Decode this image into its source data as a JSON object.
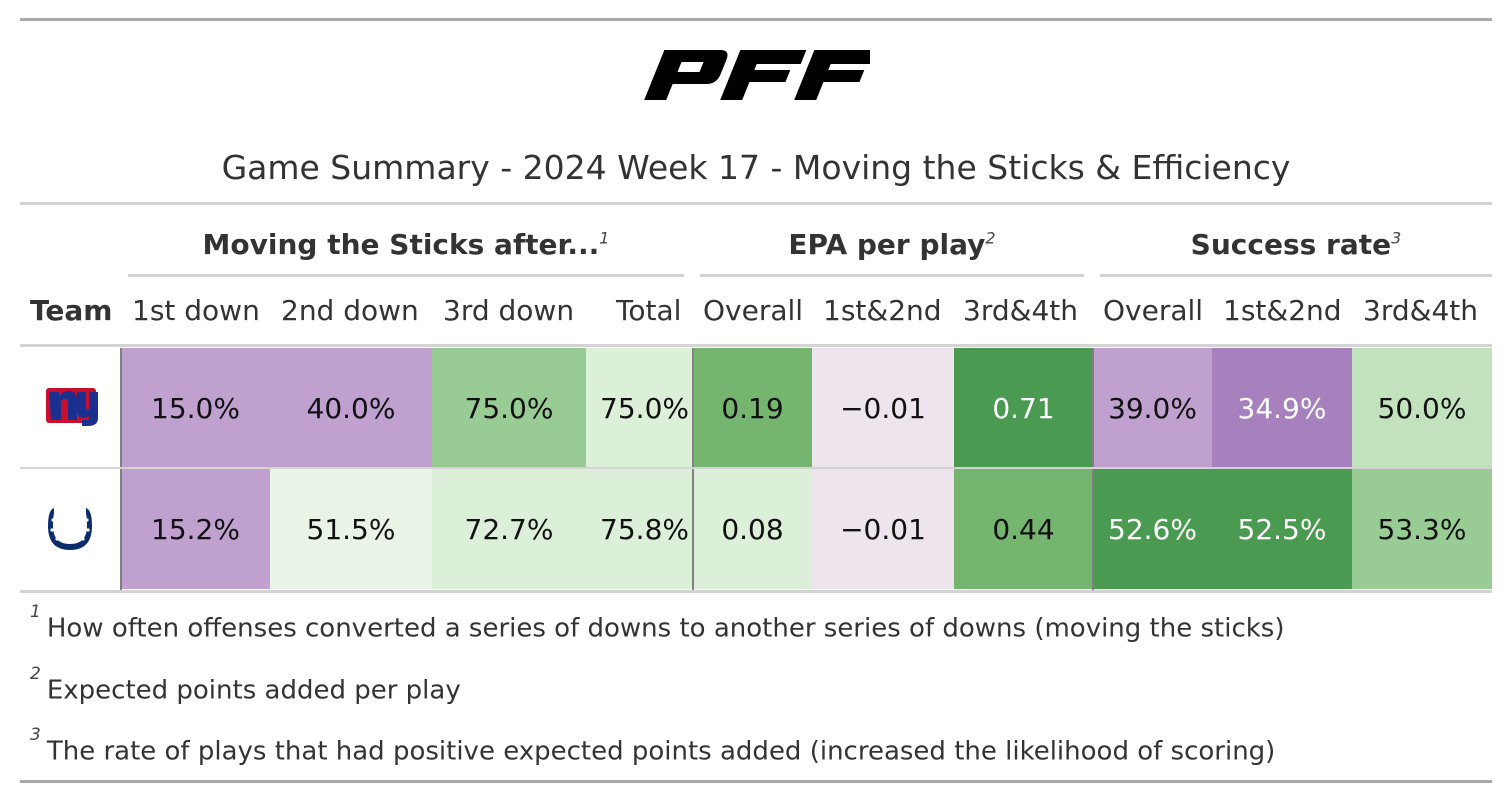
{
  "logo_text": "PFF",
  "title": "Game Summary - 2024 Week 17 - Moving the Sticks & Efficiency",
  "spanners": [
    {
      "label": "Moving the Sticks after...",
      "footnote": "1"
    },
    {
      "label": "EPA per play",
      "footnote": "2"
    },
    {
      "label": "Success rate",
      "footnote": "3"
    }
  ],
  "columns": [
    "Team",
    "1st down",
    "2nd down",
    "3rd down",
    "Total",
    "Overall",
    "1st&2nd",
    "3rd&4th",
    "Overall",
    "1st&2nd",
    "3rd&4th"
  ],
  "rows": [
    {
      "team": "NY Giants",
      "team_icon": "ny-giants-logo-icon",
      "values": [
        "15.0%",
        "40.0%",
        "75.0%",
        "75.0%",
        "0.19",
        "−0.01",
        "0.71",
        "39.0%",
        "34.9%",
        "50.0%"
      ],
      "colors": [
        "#bfa0cf",
        "#bfa0cf",
        "#99cc95",
        "#dcefd8",
        "#75b56f",
        "#ede4ee",
        "#4a9a51",
        "#bfa0cf",
        "#a681bd",
        "#c1e2bd"
      ],
      "text_colors": [
        "#111",
        "#111",
        "#111",
        "#111",
        "#111",
        "#111",
        "#ffffff",
        "#111",
        "#ffffff",
        "#111"
      ]
    },
    {
      "team": "Indianapolis Colts",
      "team_icon": "colts-horseshoe-icon",
      "values": [
        "15.2%",
        "51.5%",
        "72.7%",
        "75.8%",
        "0.08",
        "−0.01",
        "0.44",
        "52.6%",
        "52.5%",
        "53.3%"
      ],
      "colors": [
        "#bfa0cf",
        "#e9f3e6",
        "#dcefd8",
        "#dcefd8",
        "#dcefd8",
        "#ede4ee",
        "#75b56f",
        "#4a9a51",
        "#4a9a51",
        "#99cc95"
      ],
      "text_colors": [
        "#111",
        "#111",
        "#111",
        "#111",
        "#111",
        "#111",
        "#111",
        "#ffffff",
        "#ffffff",
        "#111"
      ]
    }
  ],
  "footnotes": [
    {
      "mark": "1",
      "text": "How often offenses converted a series of downs to another series of downs (moving the sticks)"
    },
    {
      "mark": "2",
      "text": "Expected points added per play"
    },
    {
      "mark": "3",
      "text": "The rate of plays that had positive expected points added (increased the likelihood of scoring)"
    }
  ],
  "colors": {
    "purple_dark": "#a681bd",
    "purple": "#bfa0cf",
    "purple_light": "#ede4ee",
    "green_dark": "#4a9a51",
    "green": "#75b56f",
    "green_mid": "#99cc95",
    "green_light": "#dcefd8",
    "giants_blue": "#1b2f8f",
    "giants_red": "#c8102e",
    "colts_blue": "#0b2d6e"
  }
}
